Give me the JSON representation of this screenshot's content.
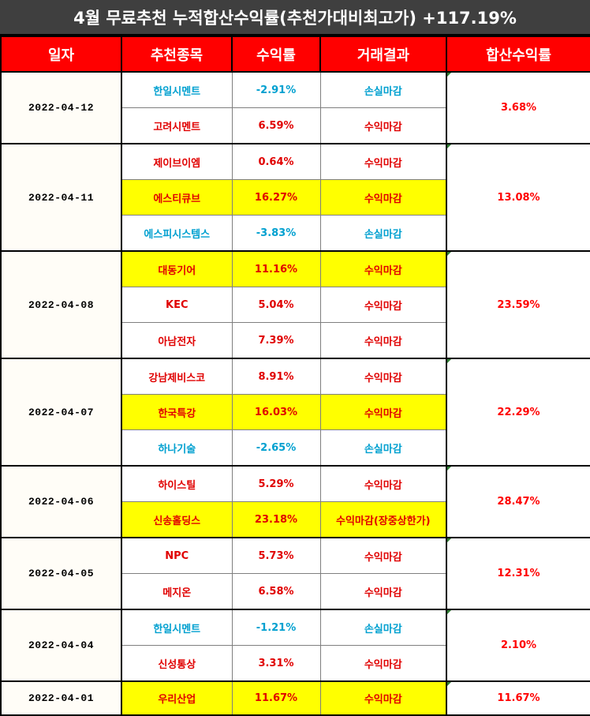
{
  "title": "4월 무료추천 누적합산수익률(추천가대비최고가) +117.19%",
  "headers": [
    "일자",
    "추천종목",
    "수익률",
    "거래결과",
    "합산수익률"
  ],
  "groups": [
    {
      "date": "2022-04-12",
      "total": "3.68%",
      "rows": [
        {
          "stock": "한일시멘트",
          "rate": "-2.91%",
          "result": "손실마감",
          "loss": true,
          "hl": false
        },
        {
          "stock": "고려시멘트",
          "rate": "6.59%",
          "result": "수익마감",
          "loss": false,
          "hl": false
        }
      ]
    },
    {
      "date": "2022-04-11",
      "total": "13.08%",
      "rows": [
        {
          "stock": "제이브이엠",
          "rate": "0.64%",
          "result": "수익마감",
          "loss": false,
          "hl": false
        },
        {
          "stock": "에스티큐브",
          "rate": "16.27%",
          "result": "수익마감",
          "loss": false,
          "hl": true
        },
        {
          "stock": "에스피시스템스",
          "rate": "-3.83%",
          "result": "손실마감",
          "loss": true,
          "hl": false
        }
      ]
    },
    {
      "date": "2022-04-08",
      "total": "23.59%",
      "rows": [
        {
          "stock": "대동기어",
          "rate": "11.16%",
          "result": "수익마감",
          "loss": false,
          "hl": true
        },
        {
          "stock": "KEC",
          "rate": "5.04%",
          "result": "수익마감",
          "loss": false,
          "hl": false
        },
        {
          "stock": "아남전자",
          "rate": "7.39%",
          "result": "수익마감",
          "loss": false,
          "hl": false
        }
      ]
    },
    {
      "date": "2022-04-07",
      "total": "22.29%",
      "rows": [
        {
          "stock": "강남제비스코",
          "rate": "8.91%",
          "result": "수익마감",
          "loss": false,
          "hl": false
        },
        {
          "stock": "한국특강",
          "rate": "16.03%",
          "result": "수익마감",
          "loss": false,
          "hl": true
        },
        {
          "stock": "하나기술",
          "rate": "-2.65%",
          "result": "손실마감",
          "loss": true,
          "hl": false
        }
      ]
    },
    {
      "date": "2022-04-06",
      "total": "28.47%",
      "rows": [
        {
          "stock": "하이스틸",
          "rate": "5.29%",
          "result": "수익마감",
          "loss": false,
          "hl": false
        },
        {
          "stock": "신송홀딩스",
          "rate": "23.18%",
          "result": "수익마감(장중상한가)",
          "loss": false,
          "hl": true
        }
      ]
    },
    {
      "date": "2022-04-05",
      "total": "12.31%",
      "rows": [
        {
          "stock": "NPC",
          "rate": "5.73%",
          "result": "수익마감",
          "loss": false,
          "hl": false
        },
        {
          "stock": "메지온",
          "rate": "6.58%",
          "result": "수익마감",
          "loss": false,
          "hl": false
        }
      ]
    },
    {
      "date": "2022-04-04",
      "total": "2.10%",
      "rows": [
        {
          "stock": "한일시멘트",
          "rate": "-1.21%",
          "result": "손실마감",
          "loss": true,
          "hl": false
        },
        {
          "stock": "신성통상",
          "rate": "3.31%",
          "result": "수익마감",
          "loss": false,
          "hl": false
        }
      ]
    },
    {
      "date": "2022-04-01",
      "total": "11.67%",
      "rows": [
        {
          "stock": "우리산업",
          "rate": "11.67%",
          "result": "수익마감",
          "loss": false,
          "hl": true
        }
      ]
    }
  ]
}
